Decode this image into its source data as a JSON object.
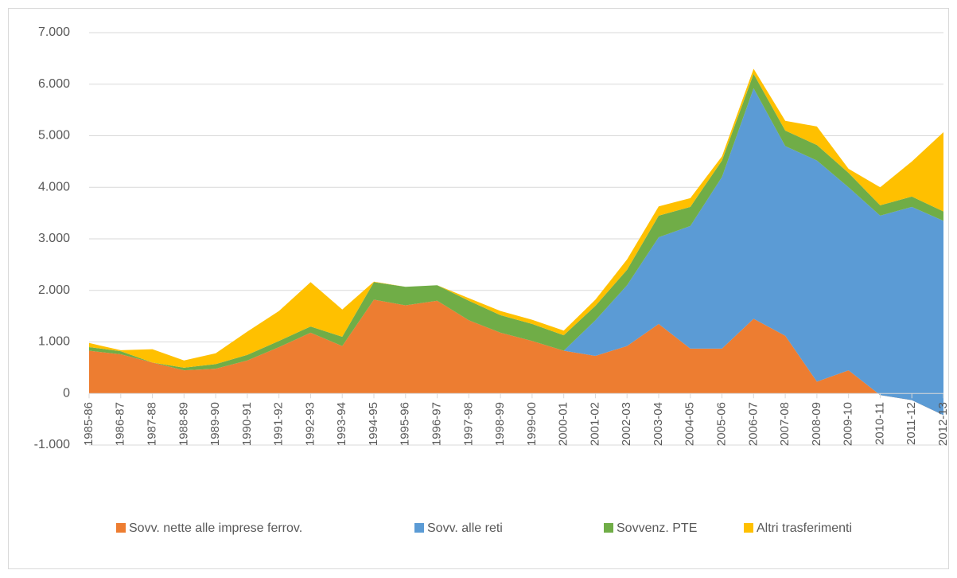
{
  "chart_data": {
    "type": "stacked_area",
    "categories": [
      "1985-86",
      "1986-87",
      "1987-88",
      "1988-89",
      "1989-90",
      "1990-91",
      "1991-92",
      "1992-93",
      "1993-94",
      "1994-95",
      "1995-96",
      "1996-97",
      "1997-98",
      "1998-99",
      "1999-00",
      "2000-01",
      "2001-02",
      "2002-03",
      "2003-04",
      "2004-05",
      "2005-06",
      "2006-07",
      "2007-08",
      "2008-09",
      "2009-10",
      "2010-11",
      "2011-12",
      "2012-13"
    ],
    "series": [
      {
        "name": "Sovv. nette alle imprese ferrov.",
        "color": "#ed7d31",
        "values": [
          830,
          760,
          600,
          450,
          480,
          640,
          900,
          1180,
          920,
          1820,
          1710,
          1800,
          1420,
          1180,
          1020,
          830,
          730,
          920,
          1350,
          870,
          870,
          1450,
          1120,
          230,
          450,
          -30,
          -130,
          -420
        ]
      },
      {
        "name": "Sovv. alle reti",
        "color": "#5b9bd5",
        "values": [
          0,
          0,
          0,
          0,
          0,
          0,
          0,
          0,
          0,
          0,
          0,
          0,
          0,
          0,
          0,
          0,
          690,
          1180,
          1680,
          2380,
          3330,
          4470,
          3680,
          4290,
          3550,
          3480,
          3750,
          3770
        ]
      },
      {
        "name": "Sovvenz. PTE",
        "color": "#70ad47",
        "values": [
          70,
          60,
          0,
          50,
          90,
          110,
          120,
          120,
          180,
          340,
          360,
          300,
          380,
          340,
          330,
          300,
          280,
          300,
          420,
          370,
          320,
          280,
          300,
          300,
          280,
          200,
          200,
          180
        ]
      },
      {
        "name": "Altri trasferimenti",
        "color": "#ffc000",
        "values": [
          80,
          20,
          260,
          140,
          210,
          450,
          580,
          860,
          530,
          10,
          0,
          0,
          50,
          80,
          80,
          90,
          120,
          200,
          180,
          170,
          80,
          100,
          190,
          360,
          80,
          350,
          680,
          1540
        ]
      }
    ],
    "ylim": [
      -1000,
      7000
    ],
    "yticks": [
      {
        "value": -1000,
        "label": "-1.000"
      },
      0,
      {
        "value": 1000,
        "label": "1.000"
      },
      {
        "value": 2000,
        "label": "2.000"
      },
      {
        "value": 3000,
        "label": "3.000"
      },
      {
        "value": 4000,
        "label": "4.000"
      },
      {
        "value": 5000,
        "label": "5.000"
      },
      {
        "value": 6000,
        "label": "6.000"
      },
      {
        "value": 7000,
        "label": "7.000"
      }
    ],
    "grid": true,
    "legend": "bottom"
  }
}
